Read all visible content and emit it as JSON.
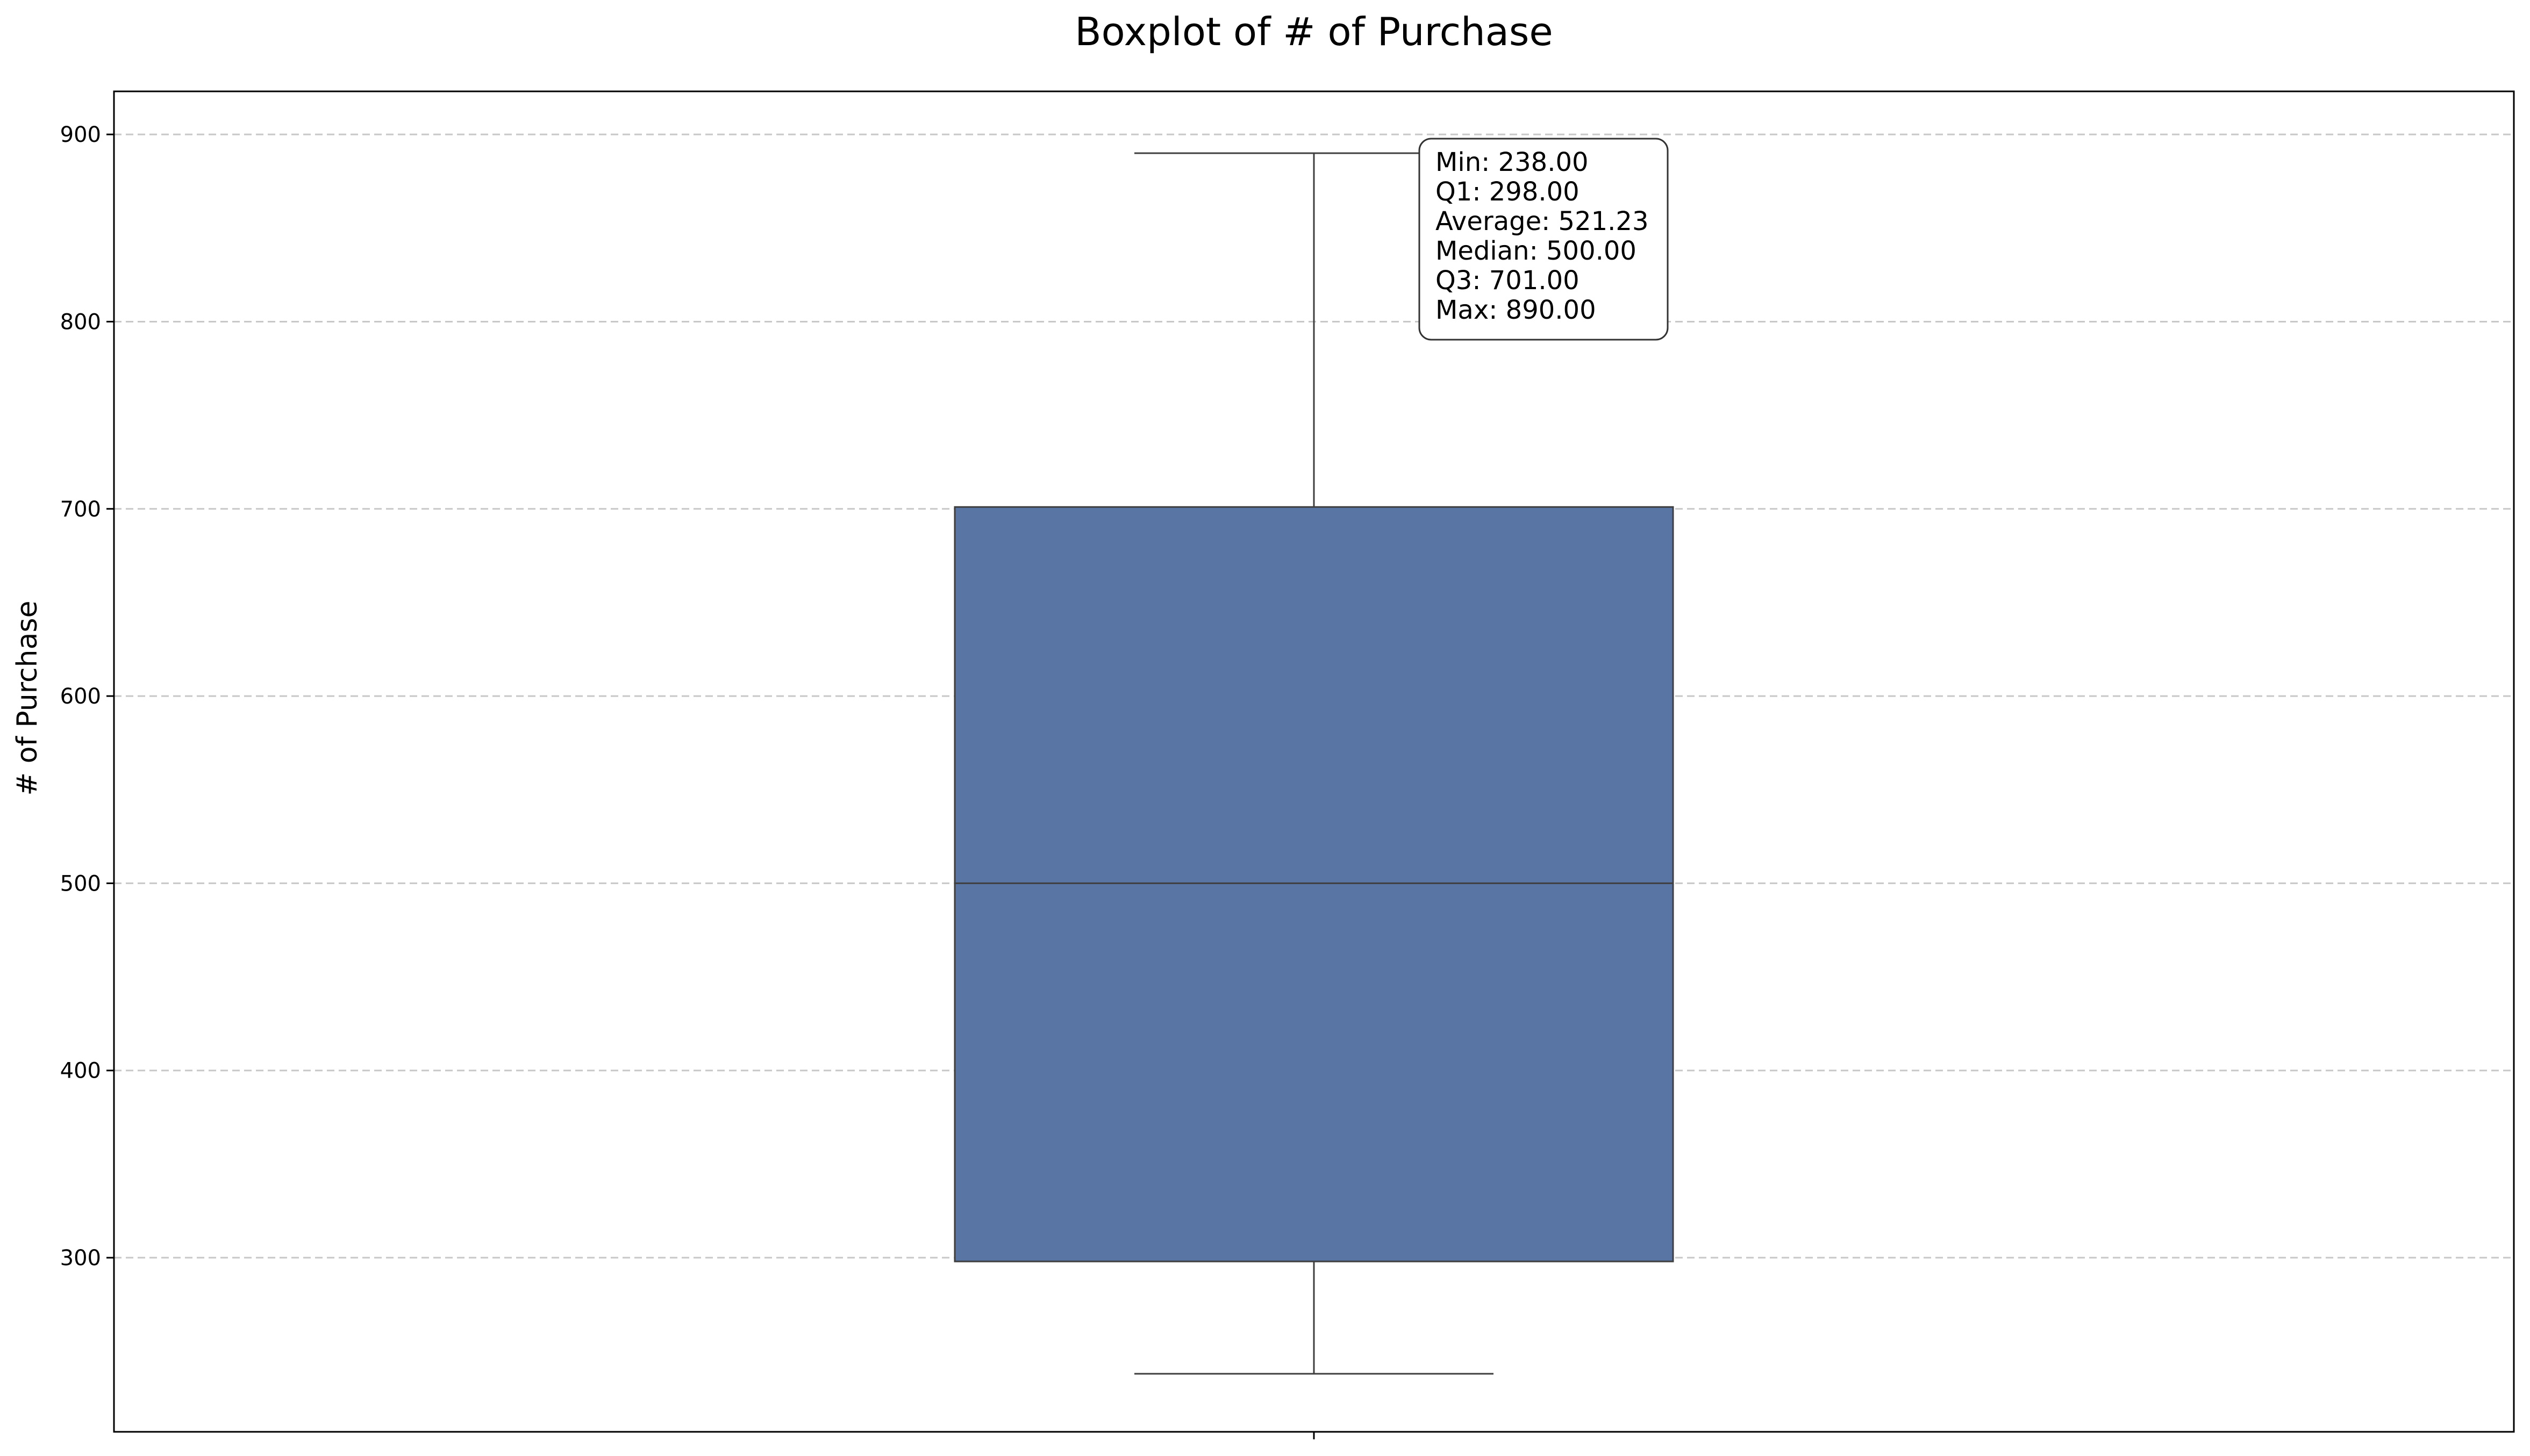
{
  "chart_data": {
    "type": "boxplot",
    "title": "Boxplot of # of Purchase",
    "xlabel": "",
    "ylabel": "# of Purchase",
    "ylim": [
      207,
      923
    ],
    "yticks": [
      300,
      400,
      500,
      600,
      700,
      800,
      900
    ],
    "grid": "y-dashed",
    "box": {
      "min": 238,
      "q1": 298,
      "median": 500,
      "q3": 701,
      "max": 890,
      "mean": 521.23,
      "color": "#5975a4",
      "edge_color": "#3f3f3f"
    },
    "stats_box": {
      "placement": "top-center",
      "lines": [
        "Min: 238.00",
        "Q1: 298.00",
        "Average: 521.23",
        "Median: 500.00",
        "Q3: 701.00",
        "Max: 890.00"
      ]
    }
  }
}
